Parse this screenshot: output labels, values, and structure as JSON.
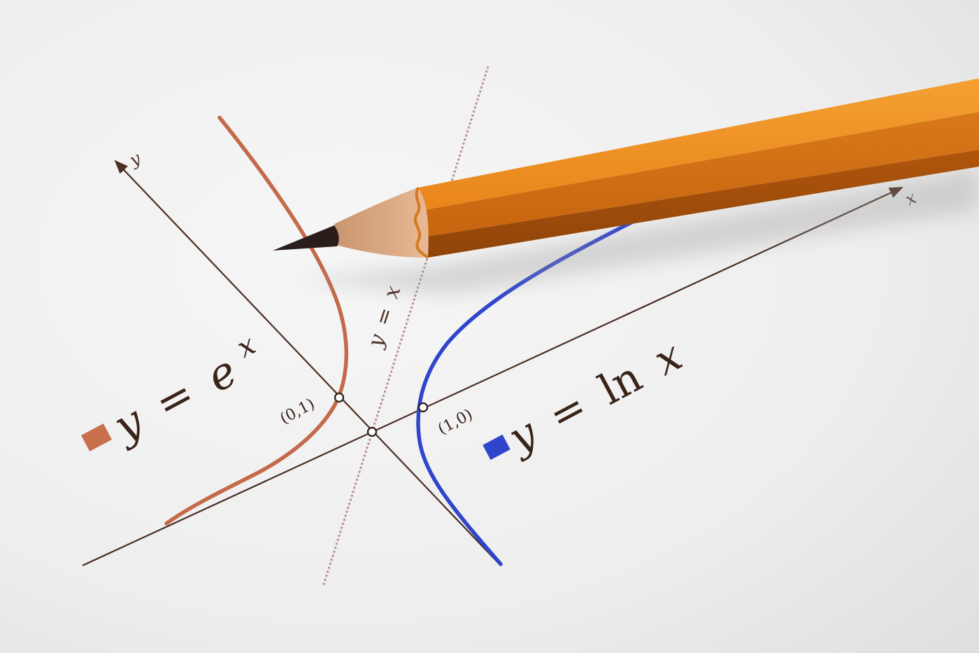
{
  "labels": {
    "y_axis": "y",
    "x_axis": "x",
    "point_origin_up": "(0,1)",
    "point_right": "(1,0)",
    "line_identity_y": "y",
    "line_identity_eq": "=",
    "line_identity_x": "x",
    "exp_y": "y",
    "exp_eq": "=",
    "exp_base": "e",
    "exp_power": "x",
    "ln_y": "y",
    "ln_eq": "=",
    "ln_fn": "ln",
    "ln_x": "x"
  },
  "colors": {
    "exp_curve": "#c46a4a",
    "ln_curve": "#2f45cc",
    "axis": "#4a2e22",
    "dotted_line": "#b08080",
    "pencil_body": "#ee8a1a",
    "legend_exp": "#c8704e",
    "legend_ln": "#2f45cc"
  }
}
